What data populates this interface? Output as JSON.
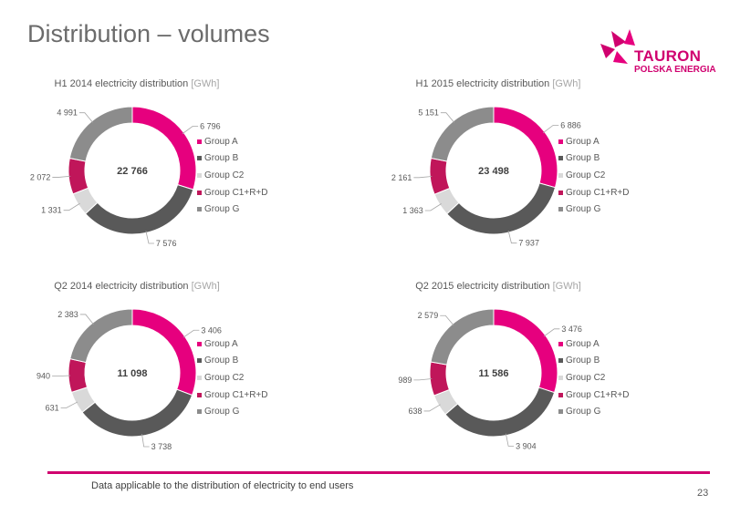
{
  "page": {
    "title": "Distribution – volumes",
    "footer": "Data applicable to the distribution of electricity to end users",
    "page_number": "23"
  },
  "logo": {
    "name": "TAURON",
    "sub": "POLSKA ENERGIA",
    "color": "#d0006f"
  },
  "colors": {
    "Group A": "#e6007e",
    "Group B": "#595959",
    "Group C2": "#d9d9d9",
    "Group C1+R+D": "#c0165a",
    "Group G": "#8c8c8c"
  },
  "chart_data": [
    {
      "type": "pie",
      "title": "H1 2014 electricity distribution",
      "unit": "[GWh]",
      "total": "22 766",
      "labels": [
        "Group A",
        "Group B",
        "Group C2",
        "Group C1+R+D",
        "Group G"
      ],
      "values": [
        6796,
        7576,
        1331,
        2072,
        4991
      ],
      "value_labels": [
        "6 796",
        "7 576",
        "1 331",
        "2 072",
        "4 991"
      ]
    },
    {
      "type": "pie",
      "title": "H1 2015 electricity distribution",
      "unit": "[GWh]",
      "total": "23 498",
      "labels": [
        "Group A",
        "Group B",
        "Group C2",
        "Group C1+R+D",
        "Group G"
      ],
      "values": [
        6886,
        7937,
        1363,
        2161,
        5151
      ],
      "value_labels": [
        "6 886",
        "7 937",
        "1 363",
        "2 161",
        "5 151"
      ]
    },
    {
      "type": "pie",
      "title": "Q2 2014 electricity distribution",
      "unit": "[GWh]",
      "total": "11 098",
      "labels": [
        "Group A",
        "Group B",
        "Group C2",
        "Group C1+R+D",
        "Group G"
      ],
      "values": [
        3406,
        3738,
        631,
        940,
        2383
      ],
      "value_labels": [
        "3 406",
        "3 738",
        "631",
        "940",
        "2 383"
      ]
    },
    {
      "type": "pie",
      "title": "Q2 2015 electricity distribution",
      "unit": "[GWh]",
      "total": "11 586",
      "labels": [
        "Group A",
        "Group B",
        "Group C2",
        "Group C1+R+D",
        "Group G"
      ],
      "values": [
        3476,
        3904,
        638,
        989,
        2579
      ],
      "value_labels": [
        "3 476",
        "3 904",
        "638",
        "989",
        "2 579"
      ]
    }
  ]
}
